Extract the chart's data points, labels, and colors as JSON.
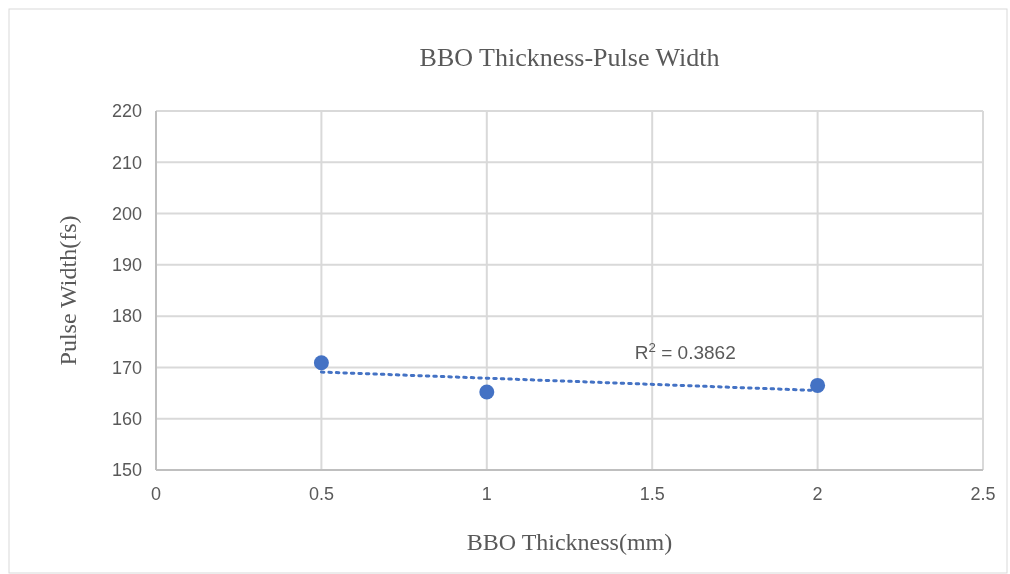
{
  "chart_data": {
    "type": "scatter",
    "title": "BBO Thickness-Pulse Width",
    "xlabel": "BBO Thickness(mm)",
    "ylabel": "Pulse Width(fs)",
    "series": [
      {
        "color": "#4472c4",
        "x": [
          0.5,
          1,
          2
        ],
        "values": [
          170.9,
          165.2,
          166.5
        ],
        "marker": "circle"
      },
      {
        "type": "line",
        "color": "#4472c4",
        "x": [
          0.5,
          2
        ],
        "values": [
          169.1,
          165.5
        ],
        "line_style": "dotted",
        "marker": "none"
      }
    ],
    "xlim": [
      0,
      2.5
    ],
    "xticks": [
      0,
      0.5,
      1,
      1.5,
      2,
      2.5
    ],
    "ylim": [
      150,
      220
    ],
    "yticks": [
      150,
      160,
      170,
      180,
      190,
      200,
      210,
      220
    ],
    "grid": true,
    "annotations": [
      "R$^{2}$ = 0.3862"
    ]
  }
}
